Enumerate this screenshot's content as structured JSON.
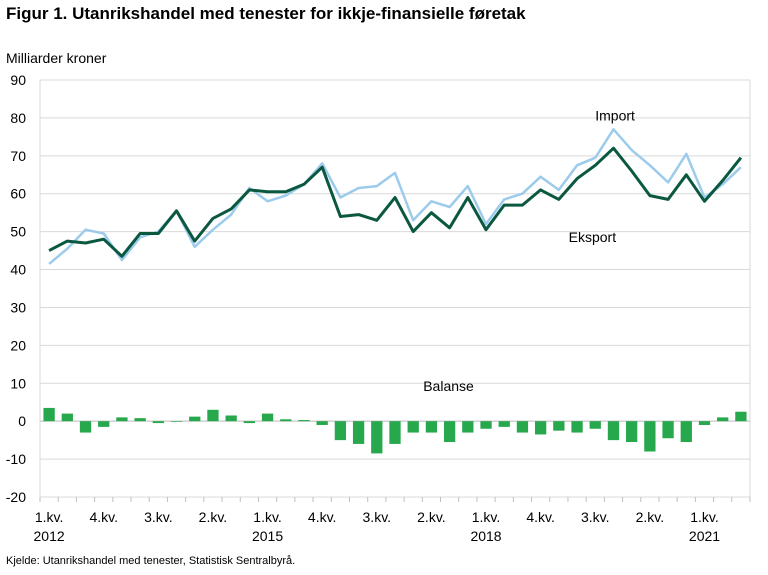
{
  "title": "Figur 1. Utanrikshandel med tenester for ikkje-finansielle føretak",
  "source": "Kjelde: Utanrikshandel med tenester, Statistisk Sentralbyrå.",
  "chart_data": {
    "type": "line",
    "ylabel": "Milliarder  kroner",
    "ylim": [
      -20,
      90
    ],
    "yticks": [
      -20,
      -10,
      0,
      10,
      20,
      30,
      40,
      50,
      60,
      70,
      80,
      90
    ],
    "grid": true,
    "x": [
      "2012K1",
      "2012K2",
      "2012K3",
      "2012K4",
      "2013K1",
      "2013K2",
      "2013K3",
      "2013K4",
      "2014K1",
      "2014K2",
      "2014K3",
      "2014K4",
      "2015K1",
      "2015K2",
      "2015K3",
      "2015K4",
      "2016K1",
      "2016K2",
      "2016K3",
      "2016K4",
      "2017K1",
      "2017K2",
      "2017K3",
      "2017K4",
      "2018K1",
      "2018K2",
      "2018K3",
      "2018K4",
      "2019K1",
      "2019K2",
      "2019K3",
      "2019K4",
      "2020K1",
      "2020K2",
      "2020K3",
      "2020K4",
      "2021K1",
      "2021K2",
      "2021K3"
    ],
    "xtick_labels": [
      {
        "index": 0,
        "label": "1.kv.",
        "year": "2012"
      },
      {
        "index": 3,
        "label": "4.kv.",
        "year": ""
      },
      {
        "index": 6,
        "label": "3.kv.",
        "year": ""
      },
      {
        "index": 9,
        "label": "2.kv.",
        "year": ""
      },
      {
        "index": 12,
        "label": "1.kv.",
        "year": "2015"
      },
      {
        "index": 15,
        "label": "4.kv.",
        "year": ""
      },
      {
        "index": 18,
        "label": "3.kv.",
        "year": ""
      },
      {
        "index": 21,
        "label": "2.kv.",
        "year": ""
      },
      {
        "index": 24,
        "label": "1.kv.",
        "year": "2018"
      },
      {
        "index": 27,
        "label": "4.kv.",
        "year": ""
      },
      {
        "index": 30,
        "label": "3.kv.",
        "year": ""
      },
      {
        "index": 33,
        "label": "2.kv.",
        "year": ""
      },
      {
        "index": 36,
        "label": "1.kv.",
        "year": "2021"
      }
    ],
    "series": [
      {
        "name": "Import",
        "type": "line",
        "color": "#9ccbec",
        "values": [
          41.5,
          45.5,
          50.5,
          49.5,
          42.5,
          48.5,
          50,
          55.5,
          46,
          50.5,
          54.5,
          61.5,
          58,
          59.5,
          62.5,
          68,
          59,
          61.5,
          62,
          65.5,
          53,
          58,
          56.5,
          62,
          52,
          58.5,
          60,
          64.5,
          61,
          67.5,
          69.5,
          77,
          71.5,
          67.5,
          63,
          70.5,
          59,
          62.5,
          67
        ]
      },
      {
        "name": "Eksport",
        "type": "line",
        "color": "#0b5841",
        "values": [
          45,
          47.5,
          47,
          48,
          43.5,
          49.5,
          49.5,
          55.5,
          47.5,
          53.5,
          56,
          61,
          60.5,
          60.5,
          62.5,
          67,
          54,
          54.5,
          53,
          59,
          50,
          55,
          51,
          59,
          50.5,
          57,
          57,
          61,
          58.5,
          64,
          67.5,
          72,
          66,
          59.5,
          58.5,
          65,
          58,
          63.5,
          69.5
        ]
      },
      {
        "name": "Balanse",
        "type": "bar",
        "color": "#27a84c",
        "values": [
          3.5,
          2,
          -3,
          -1.5,
          1,
          0.8,
          -0.5,
          0,
          1.2,
          3,
          1.5,
          -0.5,
          2,
          0.5,
          0.3,
          -1,
          -5,
          -6,
          -8.5,
          -6,
          -3,
          -3,
          -5.5,
          -3,
          -2,
          -1.5,
          -3,
          -3.5,
          -2.5,
          -3,
          -2,
          -5,
          -5.5,
          -8,
          -4.5,
          -5.5,
          -1,
          1,
          2.5
        ]
      }
    ],
    "annotations": [
      {
        "text": "Import",
        "series": "Import",
        "index": 30
      },
      {
        "text": "Eksport",
        "series": "Eksport",
        "index": 27
      },
      {
        "text": "Balanse",
        "series": "Balanse",
        "index": 20
      }
    ]
  }
}
